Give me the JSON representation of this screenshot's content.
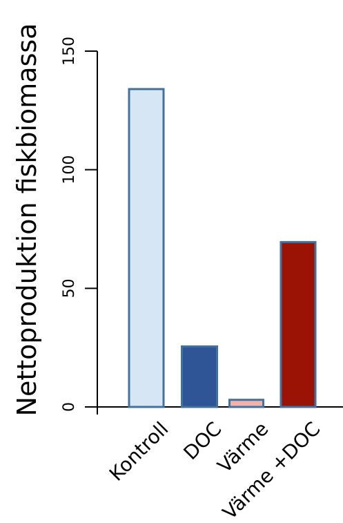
{
  "chart_data": {
    "type": "bar",
    "title": "",
    "xlabel": "",
    "ylabel": "Nettoproduktion fiskbiomassa",
    "ylim": [
      0,
      150
    ],
    "yticks": [
      0,
      50,
      100,
      150
    ],
    "grid": false,
    "categories": [
      "Kontroll",
      "DOC",
      "Värme",
      "Värme +DOC"
    ],
    "values": [
      134,
      25.5,
      3,
      69.5
    ],
    "colors": {
      "fills": [
        "#d6e6f5",
        "#2f5597",
        "#f4b1a8",
        "#9a1305"
      ],
      "outline": "#41719c",
      "axis": "#000000"
    }
  }
}
